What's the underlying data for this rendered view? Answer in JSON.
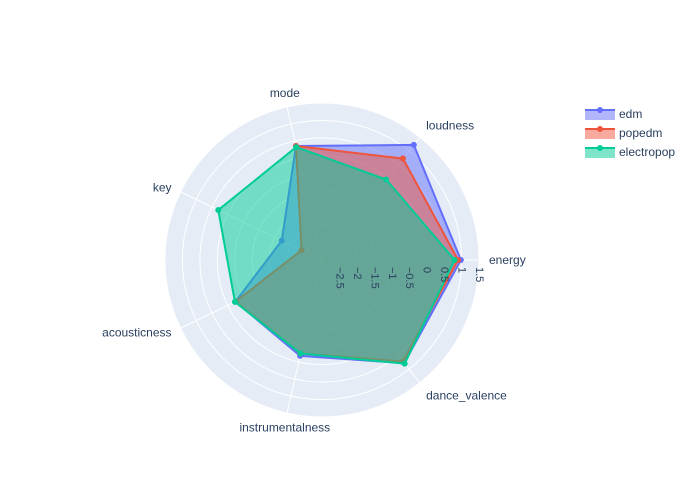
{
  "chart_data": {
    "type": "radar",
    "title": "",
    "axes": [
      "energy",
      "loudness",
      "mode",
      "key",
      "acousticness",
      "instrumentalness",
      "dance_valence"
    ],
    "radial_range": [
      -3,
      1.5
    ],
    "radial_ticks": [
      "−2.5",
      "−2",
      "−1.5",
      "−1",
      "−0.5",
      "0",
      "0.5",
      "1",
      "1.5"
    ],
    "radial_tick_values": [
      -2.5,
      -2,
      -1.5,
      -1,
      -0.5,
      0,
      0.5,
      1,
      1.5
    ],
    "grid": true,
    "legend_position": "top-right",
    "series": [
      {
        "name": "edm",
        "color": "#636efa",
        "values": [
          0.98,
          1.22,
          0.35,
          -1.72,
          -0.25,
          -0.18,
          0.78
        ]
      },
      {
        "name": "popedm",
        "color": "#ef553b",
        "values": [
          0.9,
          0.72,
          0.35,
          -2.35,
          -0.25,
          -0.25,
          0.72
        ]
      },
      {
        "name": "electropop",
        "color": "#00cc96",
        "values": [
          0.8,
          -0.05,
          0.32,
          0.3,
          -0.23,
          -0.25,
          0.8
        ]
      }
    ]
  }
}
